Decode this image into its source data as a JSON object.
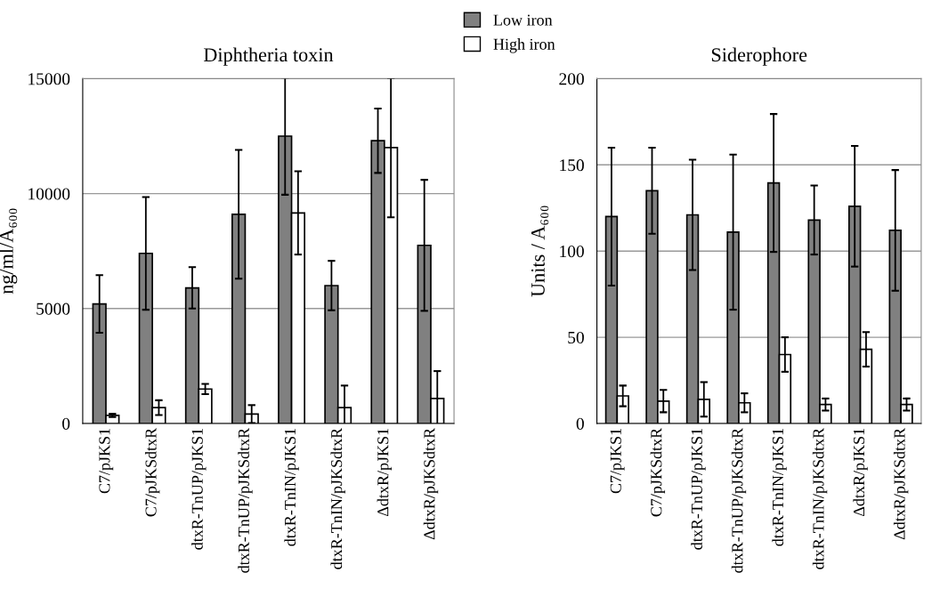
{
  "chart_data": [
    {
      "type": "bar",
      "title": "Diphtheria toxin",
      "ylabel": "ng/ml/A₆₀₀",
      "categories": [
        "C7/pJKS1",
        "C7/pJKSdtxR",
        "dtxR-TnUP/pJKS1",
        "dtxR-TnUP/pJKSdtxR",
        "dtxR-TnIN/pJKS1",
        "dtxR-TnIN/pJKSdtxR",
        "ΔdtxR/pJKS1",
        "ΔdtxR/pJKSdtxR"
      ],
      "series": [
        {
          "name": "Low iron",
          "color": "#808080",
          "values": [
            5200,
            7400,
            5900,
            9100,
            12500,
            6000,
            12300,
            7750
          ],
          "errors": [
            1250,
            2450,
            900,
            2800,
            2550,
            1075,
            1400,
            2850
          ]
        },
        {
          "name": "High iron",
          "color": "#ffffff",
          "values": [
            350,
            690,
            1500,
            410,
            9160,
            690,
            12000,
            1090
          ],
          "errors": [
            70,
            320,
            225,
            390,
            1810,
            960,
            3030,
            1190
          ]
        }
      ],
      "ylim": [
        0,
        15000
      ],
      "yticks": [
        0,
        5000,
        10000,
        15000
      ],
      "grid": "y",
      "legend": "top right"
    },
    {
      "type": "bar",
      "title": "Siderophore",
      "ylabel": "Units / A₆₀₀",
      "categories": [
        "C7/pJKS1",
        "C7/pJKSdtxR",
        "dtxR-TnUP/pJKS1",
        "dtxR-TnUP/pJKSdtxR",
        "dtxR-TnIN/pJKS1",
        "dtxR-TnIN/pJKSdtxR",
        "ΔdtxR/pJKS1",
        "ΔdtxR/pJKSdtxR"
      ],
      "series": [
        {
          "color": "#808080",
          "values": [
            120,
            135,
            121,
            111,
            139.5,
            118,
            126,
            112
          ],
          "errors": [
            40,
            25,
            32,
            45,
            40,
            20,
            35,
            35
          ]
        },
        {
          "color": "#ffffff",
          "values": [
            16,
            13,
            14,
            12,
            40,
            11,
            43,
            11
          ],
          "errors": [
            6,
            6.5,
            10,
            5.5,
            10,
            3.5,
            10,
            3.5
          ]
        }
      ],
      "ylim": [
        0,
        200
      ],
      "yticks": [
        0,
        50,
        100,
        150,
        200
      ],
      "grid": "y"
    }
  ]
}
